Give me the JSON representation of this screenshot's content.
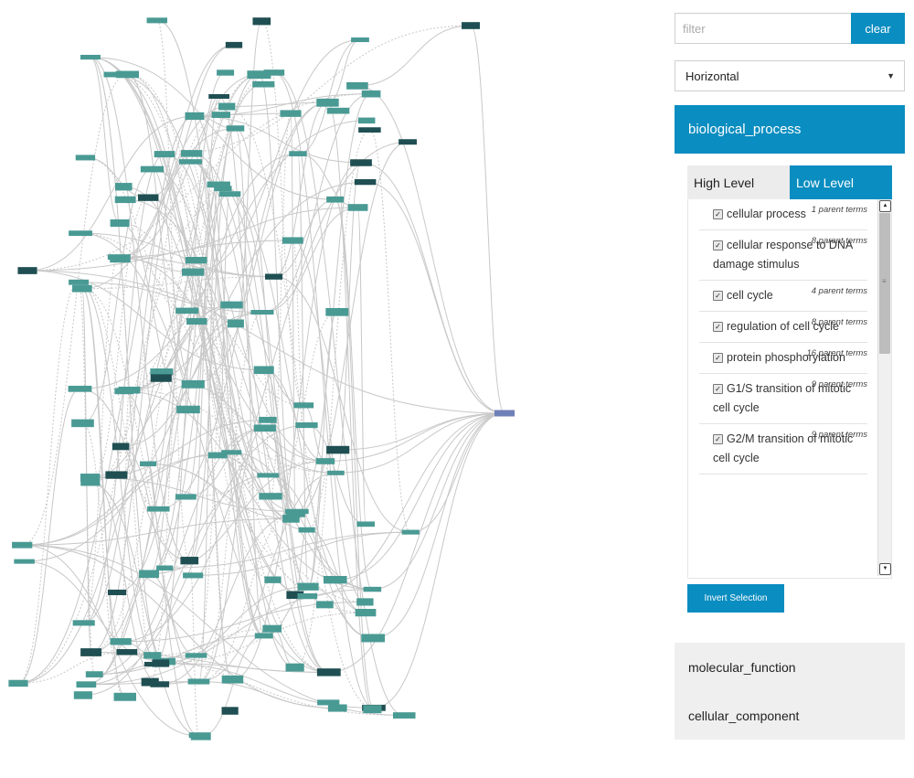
{
  "filter": {
    "placeholder": "filter",
    "clear_label": "clear"
  },
  "layout_select": {
    "selected": "Horizontal"
  },
  "sections": {
    "biological_process": {
      "title": "biological_process",
      "tabs": {
        "high_level": "High Level",
        "low_level": "Low Level"
      },
      "items": [
        {
          "label": "cellular process",
          "parents": "1 parent terms",
          "checked": true
        },
        {
          "label": "cellular response to DNA damage stimulus",
          "parents": "8 parent terms",
          "checked": true
        },
        {
          "label": "cell cycle",
          "parents": "4 parent terms",
          "checked": true
        },
        {
          "label": "regulation of cell cycle",
          "parents": "8 parent terms",
          "checked": true
        },
        {
          "label": "protein phosphorylation",
          "parents": "16 parent terms",
          "checked": true
        },
        {
          "label": "G1/S transition of mitotic cell cycle",
          "parents": "9 parent terms",
          "checked": true
        },
        {
          "label": "G2/M transition of mitotic cell cycle",
          "parents": "9 parent terms",
          "checked": true
        }
      ],
      "invert_label": "Invert Selection"
    },
    "molecular_function": {
      "title": "molecular_function"
    },
    "cellular_component": {
      "title": "cellular_component"
    }
  },
  "colors": {
    "accent": "#0a8dc0",
    "node_teal": "#4a9a94",
    "node_dark": "#1f4f52",
    "node_root": "#6f7fb8",
    "edge": "#c8c8c8"
  }
}
